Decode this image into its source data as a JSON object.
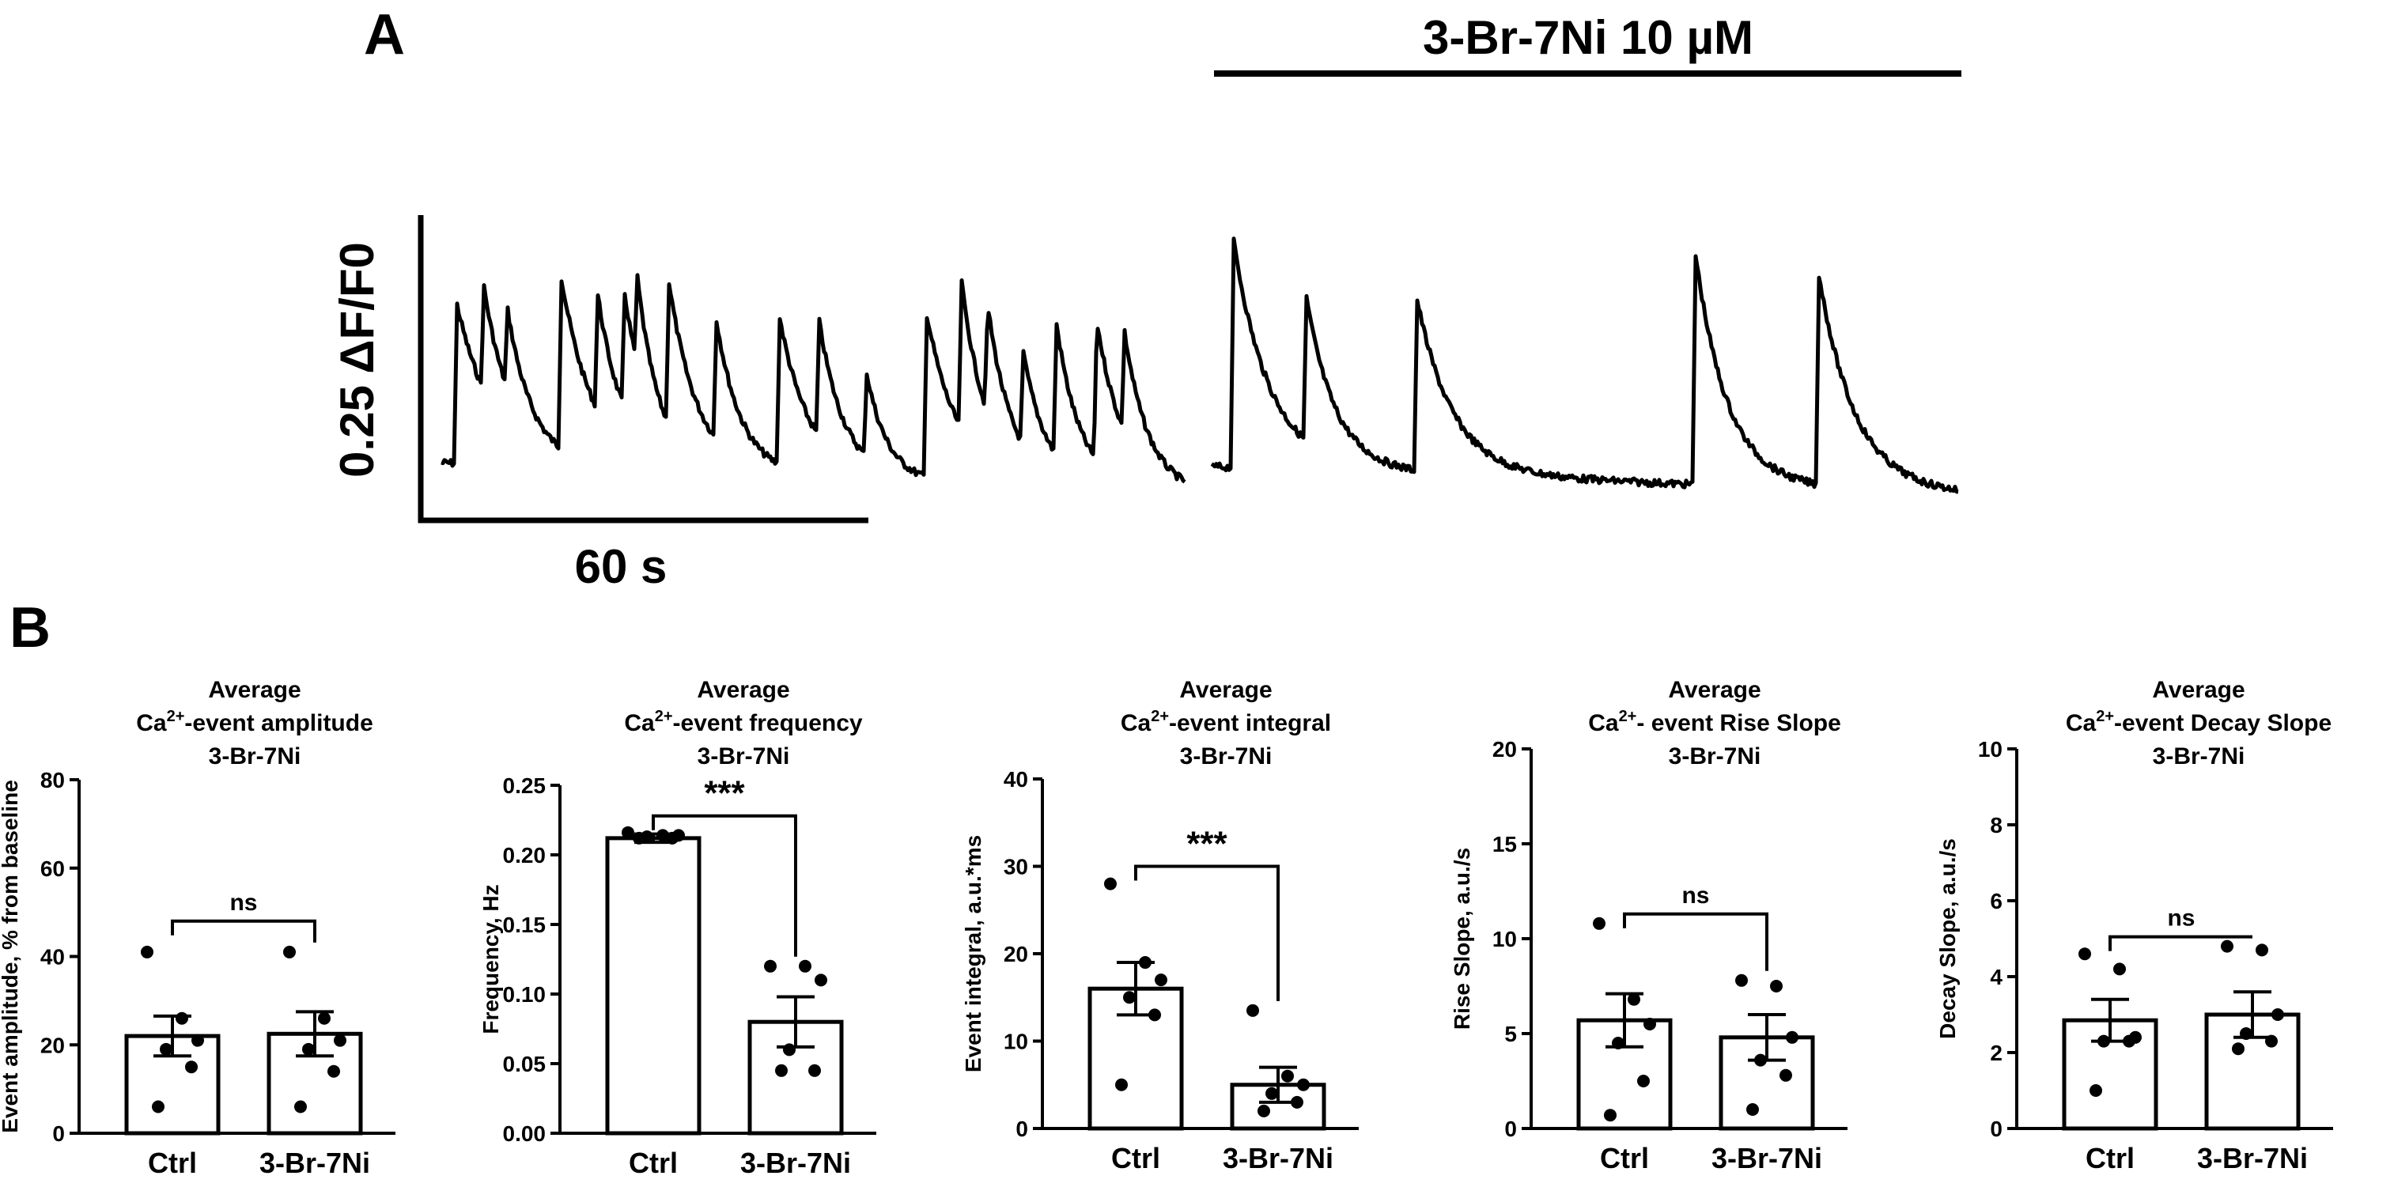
{
  "panel_a": {
    "letter": "A",
    "treatment_label": "3-Br-7Ni 10 µM",
    "scale_y_label": "0.25 ΔF/F0",
    "scale_x_label": "60 s"
  },
  "panel_b": {
    "letter": "B"
  },
  "chart_data": [
    {
      "type": "bar",
      "title_lines": [
        "Average",
        "Ca{2+}-event amplitude",
        "3-Br-7Ni"
      ],
      "ylabel": "Event amplitude, % from baseline",
      "categories": [
        "Ctrl",
        "3-Br-7Ni"
      ],
      "values": [
        22,
        22.5
      ],
      "sem": [
        4.5,
        5
      ],
      "points": [
        [
          41,
          26,
          21,
          19,
          15,
          6
        ],
        [
          41,
          26,
          21,
          19,
          14,
          6
        ]
      ],
      "ylim": [
        0,
        80
      ],
      "yticks": [
        "0",
        "20",
        "40",
        "60",
        "80"
      ],
      "yticks_values": [
        0,
        20,
        40,
        60,
        80
      ],
      "significance": "ns",
      "sig_y": 48
    },
    {
      "type": "bar",
      "title_lines": [
        "Average",
        "Ca{2+}-event frequency",
        "3-Br-7Ni"
      ],
      "ylabel": "Frequency, Hz",
      "categories": [
        "Ctrl",
        "3-Br-7Ni"
      ],
      "values": [
        0.212,
        0.08
      ],
      "sem": [
        0.003,
        0.018
      ],
      "points": [
        [
          0.216,
          0.214,
          0.214,
          0.213,
          0.212,
          0.212
        ],
        [
          0.12,
          0.12,
          0.11,
          0.06,
          0.045,
          0.045
        ]
      ],
      "ylim": [
        0,
        0.25
      ],
      "yticks": [
        "0.00",
        "0.05",
        "0.10",
        "0.15",
        "0.20",
        "0.25"
      ],
      "yticks_values": [
        0,
        0.05,
        0.1,
        0.15,
        0.2,
        0.25
      ],
      "significance": "***",
      "sig_y": 0.228
    },
    {
      "type": "bar",
      "title_lines": [
        "Average",
        "Ca{2+}-event integral",
        "3-Br-7Ni"
      ],
      "ylabel": "Event integral, a.u.*ms",
      "categories": [
        "Ctrl",
        "3-Br-7Ni"
      ],
      "values": [
        16,
        5
      ],
      "sem": [
        3,
        2
      ],
      "points": [
        [
          28,
          19,
          17,
          15,
          13,
          5
        ],
        [
          13.5,
          6,
          5,
          4,
          3,
          2
        ]
      ],
      "ylim": [
        0,
        40
      ],
      "yticks": [
        "0",
        "10",
        "20",
        "30",
        "40"
      ],
      "yticks_values": [
        0,
        10,
        20,
        30,
        40
      ],
      "significance": "***",
      "sig_y": 30
    },
    {
      "type": "bar",
      "title_lines": [
        "Average",
        "Ca{2+}- event Rise Slope",
        "3-Br-7Ni"
      ],
      "ylabel": "Rise Slope, a.u./s",
      "categories": [
        "Ctrl",
        "3-Br-7Ni"
      ],
      "values": [
        5.7,
        4.8
      ],
      "sem": [
        1.4,
        1.2
      ],
      "points": [
        [
          10.8,
          6.8,
          5.5,
          4.5,
          2.5,
          0.7
        ],
        [
          7.8,
          7.5,
          4.8,
          3.6,
          2.8,
          1.0
        ]
      ],
      "ylim": [
        0,
        20
      ],
      "yticks": [
        "0",
        "5",
        "10",
        "15",
        "20"
      ],
      "yticks_values": [
        0,
        5,
        10,
        15,
        20
      ],
      "significance": "ns",
      "sig_y": 9.0
    },
    {
      "type": "bar",
      "title_lines": [
        "Average",
        "Ca{2+}-event Decay Slope",
        "3-Br-7Ni"
      ],
      "ylabel": "Decay Slope, a.u./s",
      "categories": [
        "Ctrl",
        "3-Br-7Ni"
      ],
      "values": [
        2.85,
        3.0
      ],
      "sem": [
        0.55,
        0.6
      ],
      "points": [
        [
          4.6,
          4.2,
          2.4,
          2.3,
          2.3,
          1.0
        ],
        [
          4.8,
          4.7,
          3.0,
          2.5,
          2.3,
          2.1
        ]
      ],
      "ylim": [
        0,
        10
      ],
      "yticks": [
        "0",
        "2",
        "4",
        "6",
        "8",
        "10"
      ],
      "yticks_values": [
        0,
        2,
        4,
        6,
        8,
        10
      ],
      "significance": "ns",
      "sig_y": 5.0
    }
  ]
}
